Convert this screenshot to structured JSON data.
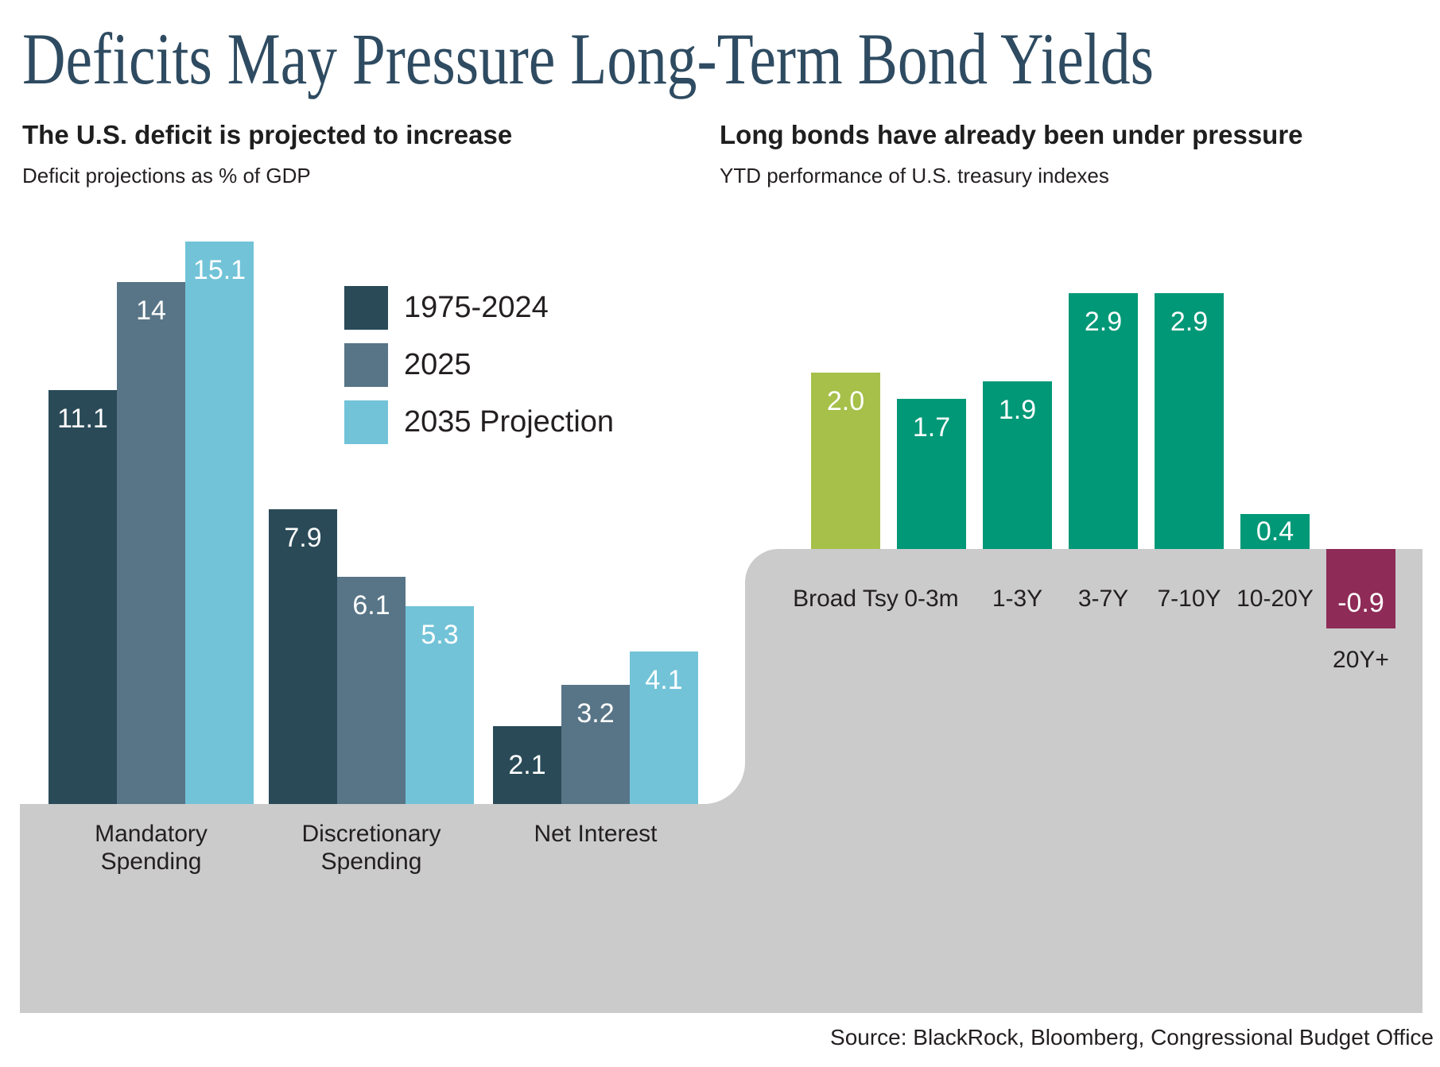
{
  "title": "Deficits May Pressure Long-Term Bond Yields",
  "source": "Source: BlackRock, Bloomberg, Congressional Budget Office",
  "colors": {
    "title_color": "#2e4b61",
    "text_color": "#231f20",
    "backdrop_gray": "#cbcbcb",
    "series_1975_2024": "#2a4a57",
    "series_2025": "#587587",
    "series_2035": "#72c3d8",
    "broad_treasury_lime": "#a6c04a",
    "treasury_green": "#009877",
    "negative_maroon": "#8e2b57"
  },
  "chart_data": [
    {
      "type": "bar",
      "title": "The U.S. deficit is projected to increase",
      "subtitle": "Deficit projections as % of GDP",
      "categories": [
        "Mandatory\nSpending",
        "Discretionary\nSpending",
        "Net Interest"
      ],
      "series": [
        {
          "name": "1975-2024",
          "color": "#2a4a57",
          "values": [
            11.1,
            7.9,
            2.1
          ]
        },
        {
          "name": "2025",
          "color": "#587587",
          "values": [
            14,
            6.1,
            3.2
          ]
        },
        {
          "name": "2035 Projection",
          "color": "#72c3d8",
          "values": [
            15.1,
            5.3,
            4.1
          ]
        }
      ],
      "value_labels": [
        "11.1",
        "14",
        "15.1",
        "7.9",
        "6.1",
        "5.3",
        "2.1",
        "3.2",
        "4.1"
      ],
      "grid": false,
      "legend_position": "upper-right-of-plot",
      "ylim": [
        0,
        16
      ]
    },
    {
      "type": "bar",
      "title": "Long bonds have already been under pressure",
      "subtitle": "YTD performance of U.S. treasury indexes",
      "categories": [
        "Broad Tsy",
        "0-3m",
        "1-3Y",
        "3-7Y",
        "7-10Y",
        "10-20Y",
        "20Y+"
      ],
      "values": [
        2.0,
        1.7,
        1.9,
        2.9,
        2.9,
        0.4,
        -0.9
      ],
      "value_labels": [
        "2.0",
        "1.7",
        "1.9",
        "2.9",
        "2.9",
        "0.4",
        "-0.9"
      ],
      "colors": [
        "#a6c04a",
        "#009877",
        "#009877",
        "#009877",
        "#009877",
        "#009877",
        "#8e2b57"
      ],
      "grid": false,
      "legend_position": "none",
      "ylim": [
        -1,
        3
      ]
    }
  ]
}
